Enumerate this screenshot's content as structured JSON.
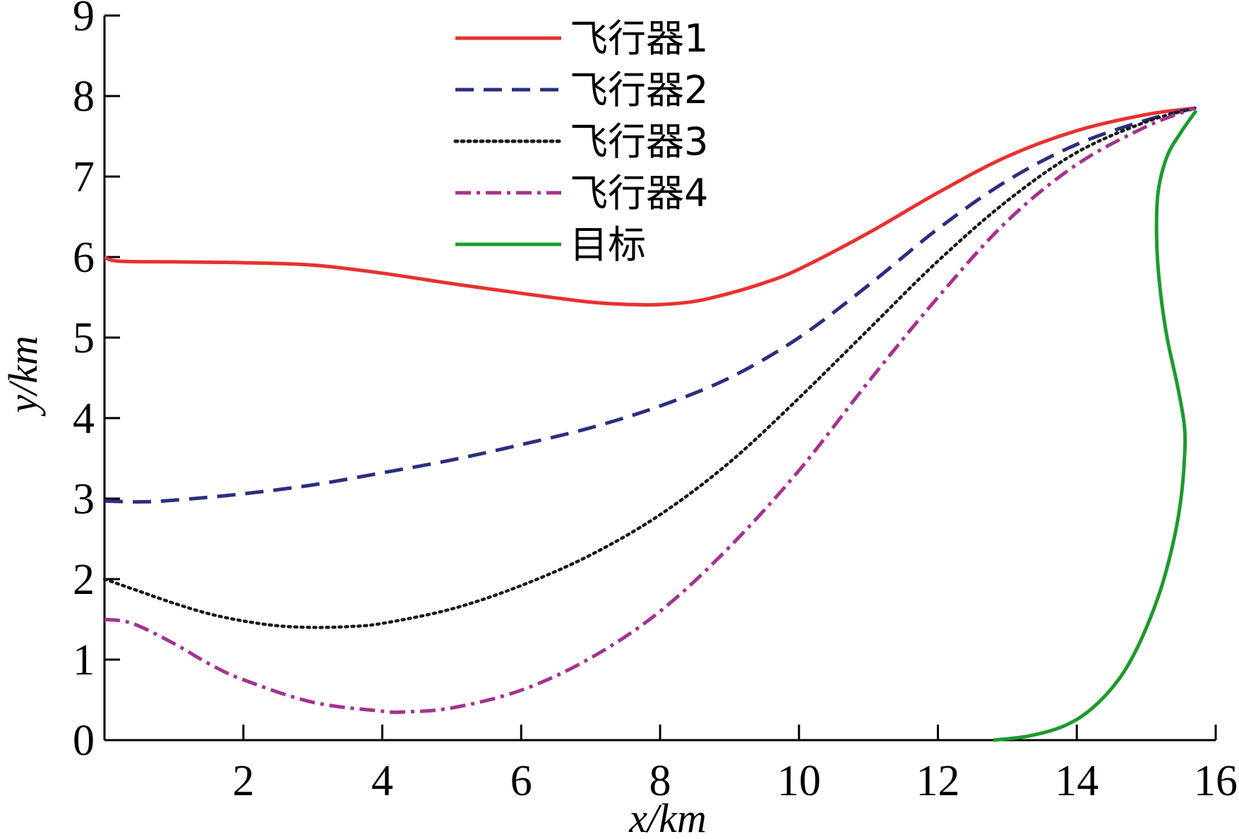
{
  "chart_data": {
    "type": "line",
    "title": "",
    "xlabel": "x/km",
    "ylabel": "y/km",
    "xlim": [
      0,
      16
    ],
    "ylim": [
      0,
      9
    ],
    "xticks": [
      2,
      4,
      6,
      8,
      10,
      12,
      14,
      16
    ],
    "yticks": [
      0,
      1,
      2,
      3,
      4,
      5,
      6,
      7,
      8,
      9
    ],
    "grid": false,
    "legend_position": "top-center",
    "series": [
      {
        "name": "飞行器1",
        "color": "#e8312f",
        "dash": "solid",
        "x": [
          0,
          0.2,
          1,
          2,
          3,
          4,
          5,
          6,
          7,
          7.6,
          8,
          8.5,
          9,
          9.5,
          10,
          11,
          12,
          13,
          14,
          15,
          15.7
        ],
        "y": [
          6.0,
          5.95,
          5.94,
          5.93,
          5.9,
          5.8,
          5.67,
          5.55,
          5.44,
          5.41,
          5.41,
          5.45,
          5.55,
          5.68,
          5.85,
          6.3,
          6.8,
          7.25,
          7.57,
          7.77,
          7.85
        ]
      },
      {
        "name": "飞行器2",
        "color": "#2b2f7f",
        "dash": "dashed",
        "x": [
          0,
          0.5,
          1,
          2,
          3,
          4,
          5,
          6,
          7,
          8,
          9,
          10,
          11,
          12,
          13,
          14,
          15,
          15.7
        ],
        "y": [
          2.97,
          2.96,
          2.98,
          3.06,
          3.17,
          3.32,
          3.48,
          3.67,
          3.88,
          4.15,
          4.5,
          5.0,
          5.65,
          6.35,
          6.95,
          7.4,
          7.7,
          7.85
        ]
      },
      {
        "name": "飞行器3",
        "color": "#1a1a1a",
        "dash": "dotted",
        "x": [
          0,
          0.5,
          1,
          1.5,
          2,
          2.5,
          3,
          3.5,
          4,
          5,
          6,
          7,
          8,
          9,
          10,
          11,
          12,
          13,
          14,
          15,
          15.7
        ],
        "y": [
          2.0,
          1.85,
          1.7,
          1.57,
          1.48,
          1.42,
          1.4,
          1.41,
          1.45,
          1.63,
          1.92,
          2.3,
          2.8,
          3.45,
          4.25,
          5.1,
          5.95,
          6.7,
          7.3,
          7.68,
          7.85
        ]
      },
      {
        "name": "飞行器4",
        "color": "#a4338f",
        "dash": "dashdot",
        "x": [
          0,
          0.4,
          1,
          1.5,
          2,
          3,
          4,
          4.3,
          5,
          6,
          7,
          8,
          9,
          10,
          11,
          12,
          13,
          14,
          15,
          15.7
        ],
        "y": [
          1.5,
          1.45,
          1.2,
          0.95,
          0.75,
          0.47,
          0.36,
          0.35,
          0.4,
          0.62,
          1.02,
          1.6,
          2.4,
          3.35,
          4.45,
          5.5,
          6.45,
          7.15,
          7.62,
          7.85
        ]
      },
      {
        "name": "目标",
        "color": "#1e9a2c",
        "dash": "solid",
        "x": [
          12.8,
          13.3,
          13.8,
          14.2,
          14.6,
          14.9,
          15.2,
          15.4,
          15.5,
          15.55,
          15.55,
          15.45,
          15.3,
          15.2,
          15.15,
          15.17,
          15.3,
          15.5,
          15.72
        ],
        "y": [
          0,
          0.05,
          0.17,
          0.38,
          0.75,
          1.2,
          1.85,
          2.5,
          3.0,
          3.5,
          3.9,
          4.4,
          5.0,
          5.6,
          6.2,
          6.8,
          7.25,
          7.55,
          7.82
        ]
      }
    ]
  }
}
